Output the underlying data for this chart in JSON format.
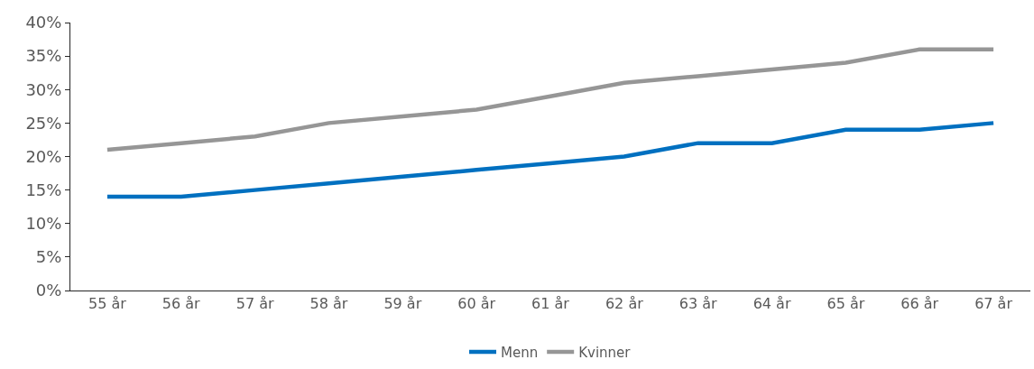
{
  "chart_data": {
    "type": "line",
    "categories": [
      "55 år",
      "56 år",
      "57 år",
      "58 år",
      "59 år",
      "60 år",
      "61 år",
      "62 år",
      "63 år",
      "64 år",
      "65 år",
      "66 år",
      "67 år"
    ],
    "series": [
      {
        "name": "Menn",
        "color": "#0070c0",
        "values": [
          14,
          14,
          15,
          16,
          17,
          18,
          19,
          20,
          22,
          22,
          24,
          24,
          25
        ]
      },
      {
        "name": "Kvinner",
        "color": "#969696",
        "values": [
          21,
          22,
          23,
          25,
          26,
          27,
          29,
          31,
          32,
          33,
          34,
          36,
          36
        ]
      }
    ],
    "ylim": [
      0,
      40
    ],
    "yticks": [
      {
        "value": 0,
        "label": "0%"
      },
      {
        "value": 5,
        "label": "5%"
      },
      {
        "value": 10,
        "label": "10%"
      },
      {
        "value": 15,
        "label": "15%"
      },
      {
        "value": 20,
        "label": "20%"
      },
      {
        "value": 25,
        "label": "25%"
      },
      {
        "value": 30,
        "label": "30%"
      },
      {
        "value": 35,
        "label": "35%"
      },
      {
        "value": 40,
        "label": "40%"
      }
    ],
    "grid": false,
    "legend": "bottom",
    "marker": "none",
    "line_style": "solid"
  }
}
